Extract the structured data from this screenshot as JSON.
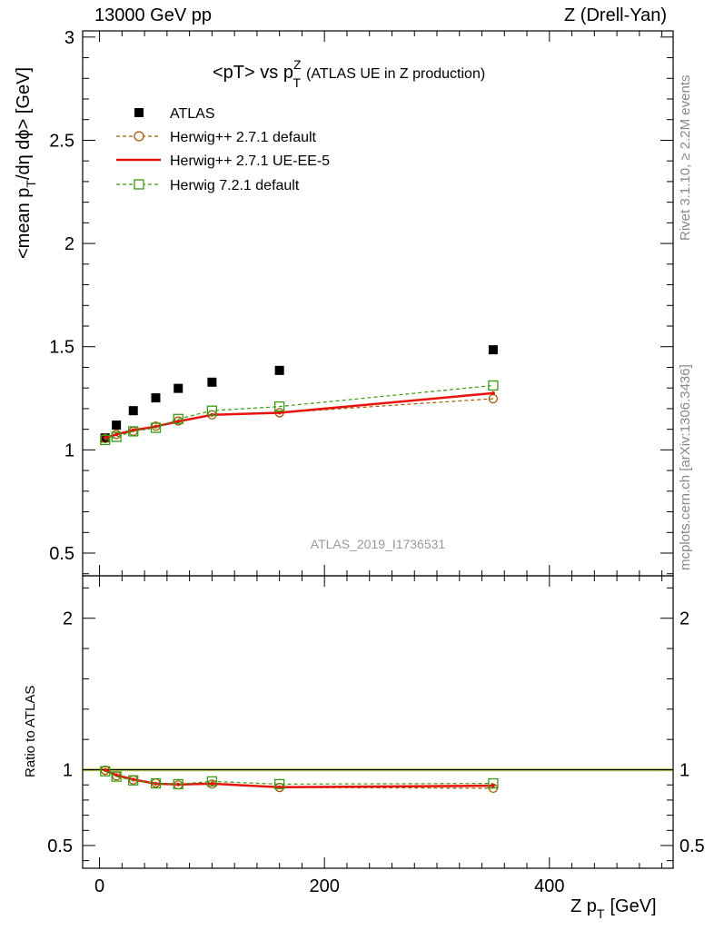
{
  "header": {
    "left": "13000 GeV pp",
    "right": "Z (Drell-Yan)"
  },
  "side": {
    "rivet_text": "Rivet 3.1.10, ≥ 2.2M events",
    "mcplots_text": "mcplots.cern.ch [arXiv:1306.3436]"
  },
  "chart_data": {
    "type": "scatter",
    "title_main": "<pT> vs p",
    "title_sup": "Z",
    "title_sub": "T",
    "title_note": "(ATLAS UE in Z production)",
    "ylabel_main": "<mean p",
    "ylabel_sub": "T",
    "ylabel_rest": "/dη dϕ> [GeV]",
    "xlabel_main": "Z p",
    "xlabel_sub": "T",
    "xlabel_rest": "[GeV]",
    "ratio_ylabel": "Ratio to ATLAS",
    "analysis_label": "ATLAS_2019_I1736531",
    "xlim": [
      -15,
      510
    ],
    "ylim_top": [
      0.39,
      3.03
    ],
    "ylim_ratio": [
      0.35,
      2.28
    ],
    "x_ticks": [
      "0",
      "200",
      "400"
    ],
    "x_tick_values": [
      0,
      200,
      400
    ],
    "y_ticks_top": [
      "0.5",
      "1",
      "1.5",
      "2",
      "2.5",
      "3"
    ],
    "y_tick_values_top": [
      0.5,
      1,
      1.5,
      2,
      2.5,
      3
    ],
    "y_ticks_ratio": [
      "0.5",
      "1",
      "2"
    ],
    "y_tick_values_ratio": [
      0.5,
      1,
      2
    ],
    "x": [
      5,
      15,
      30,
      50,
      70,
      100,
      160,
      350
    ],
    "series": [
      {
        "name": "ATLAS",
        "style": "data",
        "color": "#000000",
        "values": [
          1.058,
          1.12,
          1.19,
          1.252,
          1.298,
          1.328,
          1.385,
          1.485
        ],
        "ratio": [
          1,
          1,
          1,
          1,
          1,
          1,
          1,
          1
        ]
      },
      {
        "name": "Herwig++ 2.7.1 default",
        "style": "circle-dashed",
        "color": "#a05a00",
        "values": [
          1.055,
          1.075,
          1.09,
          1.115,
          1.14,
          1.17,
          1.18,
          1.248
        ],
        "ratio": [
          0.997,
          0.96,
          0.933,
          0.913,
          0.9,
          0.905,
          0.883,
          0.878
        ]
      },
      {
        "name": "Herwig++ 2.7.1 UE-EE-5",
        "style": "solid",
        "color": "#e8120c",
        "values": [
          1.058,
          1.075,
          1.095,
          1.113,
          1.138,
          1.17,
          1.18,
          1.275
        ],
        "ratio": [
          0.998,
          0.965,
          0.935,
          0.908,
          0.903,
          0.908,
          0.885,
          0.895
        ]
      },
      {
        "name": "Herwig 7.2.1 default",
        "style": "square-dashed",
        "color": "#3a9a14",
        "values": [
          1.048,
          1.063,
          1.09,
          1.107,
          1.15,
          1.19,
          1.21,
          1.312
        ],
        "ratio": [
          0.99,
          0.955,
          0.93,
          0.91,
          0.905,
          0.923,
          0.905,
          0.91
        ]
      }
    ],
    "ratio_band_color": "#e0f08a"
  }
}
